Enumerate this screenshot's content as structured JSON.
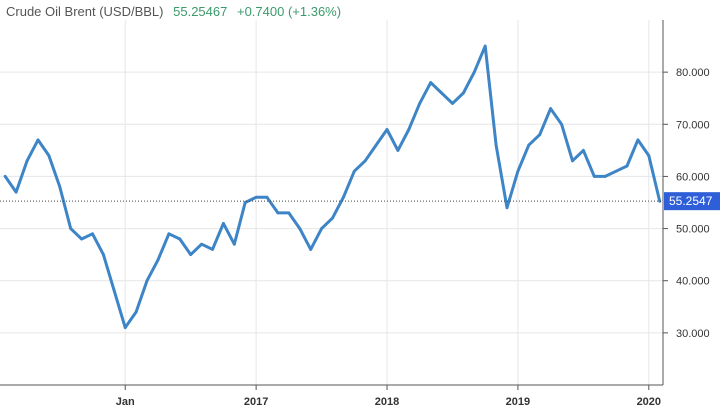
{
  "header": {
    "title": "Crude Oil Brent (USD/BBL)",
    "price": "55.25467",
    "change": "+0.7400 (+1.36%)"
  },
  "colors": {
    "line": "#3d85c6",
    "up": "#3a9a6a",
    "last_label_bg": "#2f5fd8",
    "grid": "#e6e6e6"
  },
  "chart_data": {
    "type": "line",
    "title": "Crude Oil Brent (USD/BBL)",
    "xlabel": "",
    "ylabel": "",
    "ylim": [
      20,
      90
    ],
    "xlim": [
      "2015-02",
      "2020-03"
    ],
    "grid": true,
    "y_axis_side": "right",
    "y_ticks": [
      30,
      40,
      50,
      60,
      70,
      80
    ],
    "y_tick_labels": [
      "30.000",
      "40.000",
      "50.000",
      "60.000",
      "70.000",
      "80.000"
    ],
    "x_ticks": [
      {
        "label": "Jan",
        "date": "2016-01"
      },
      {
        "label": "2017",
        "date": "2017-01"
      },
      {
        "label": "2018",
        "date": "2018-01"
      },
      {
        "label": "2019",
        "date": "2019-01"
      },
      {
        "label": "2020",
        "date": "2020-01"
      }
    ],
    "last_value": 55.2547,
    "last_value_label": "55.2547",
    "series": [
      {
        "x": [
          "2015-02",
          "2015-03",
          "2015-04",
          "2015-05",
          "2015-06",
          "2015-07",
          "2015-08",
          "2015-09",
          "2015-10",
          "2015-11",
          "2015-12",
          "2016-01",
          "2016-02",
          "2016-03",
          "2016-04",
          "2016-05",
          "2016-06",
          "2016-07",
          "2016-08",
          "2016-09",
          "2016-10",
          "2016-11",
          "2016-12",
          "2017-01",
          "2017-02",
          "2017-03",
          "2017-04",
          "2017-05",
          "2017-06",
          "2017-07",
          "2017-08",
          "2017-09",
          "2017-10",
          "2017-11",
          "2017-12",
          "2018-01",
          "2018-02",
          "2018-03",
          "2018-04",
          "2018-05",
          "2018-06",
          "2018-07",
          "2018-08",
          "2018-09",
          "2018-10",
          "2018-11",
          "2018-12",
          "2019-01",
          "2019-02",
          "2019-03",
          "2019-04",
          "2019-05",
          "2019-06",
          "2019-07",
          "2019-08",
          "2019-09",
          "2019-10",
          "2019-11",
          "2019-12",
          "2020-01",
          "2020-02"
        ],
        "y": [
          60,
          57,
          63,
          67,
          64,
          58,
          50,
          48,
          49,
          45,
          38,
          31,
          34,
          40,
          44,
          49,
          48,
          45,
          47,
          46,
          51,
          47,
          55,
          56,
          56,
          53,
          53,
          50,
          46,
          50,
          52,
          56,
          61,
          63,
          66,
          69,
          65,
          69,
          74,
          78,
          76,
          74,
          76,
          80,
          85,
          66,
          54,
          61,
          66,
          68,
          73,
          70,
          63,
          65,
          60,
          60,
          61,
          62,
          67,
          64,
          55.25
        ]
      }
    ]
  }
}
